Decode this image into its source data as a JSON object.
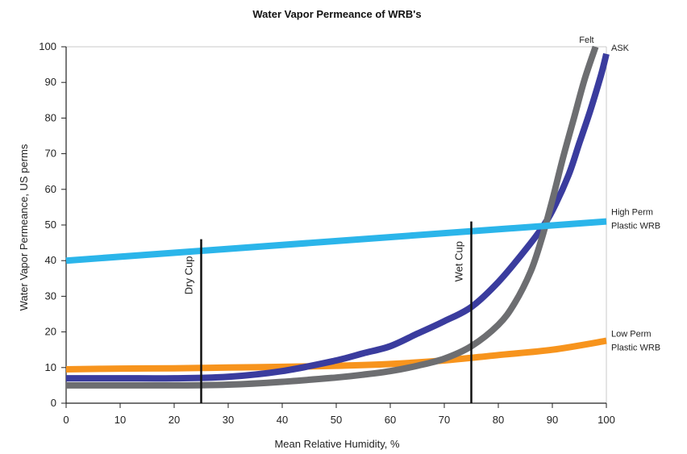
{
  "chart_data": {
    "type": "line",
    "title": "Water Vapor Permeance of WRB's",
    "xlabel": "Mean Relative Humidity, %",
    "ylabel": "Water Vapor Permeance, US perms",
    "xlim": [
      0,
      100
    ],
    "ylim": [
      0,
      100
    ],
    "xticks": [
      0,
      10,
      20,
      30,
      40,
      50,
      60,
      70,
      80,
      90,
      100
    ],
    "yticks": [
      0,
      10,
      20,
      30,
      40,
      50,
      60,
      70,
      80,
      90,
      100
    ],
    "grid": false,
    "legend": "direct labels at right end of lines",
    "series": [
      {
        "name": "Felt",
        "color": "#6d6e71",
        "x": [
          0,
          10,
          20,
          30,
          40,
          50,
          55,
          60,
          65,
          70,
          75,
          80,
          83,
          86,
          88,
          90,
          92,
          94,
          96,
          98
        ],
        "y": [
          5,
          5,
          5,
          5.2,
          6,
          7.2,
          8,
          9,
          10.5,
          12.5,
          16,
          22,
          28,
          37,
          46,
          57,
          69,
          80,
          91,
          100
        ]
      },
      {
        "name": "ASK",
        "color": "#3a3c9e",
        "x": [
          0,
          10,
          20,
          30,
          40,
          50,
          55,
          60,
          65,
          70,
          75,
          80,
          85,
          88,
          90,
          93,
          95,
          97,
          99,
          100
        ],
        "y": [
          7,
          7,
          7,
          7.4,
          9,
          12,
          14,
          16,
          19.5,
          23,
          27,
          34,
          43,
          49,
          54,
          64,
          73,
          82,
          92,
          98
        ]
      },
      {
        "name": "High Perm Plastic WRB",
        "label_lines": [
          "High Perm",
          "Plastic WRB"
        ],
        "color": "#2bb5ea",
        "x": [
          0,
          100
        ],
        "y": [
          40,
          51
        ]
      },
      {
        "name": "Low Perm Plastic WRB",
        "label_lines": [
          "Low Perm",
          "Plastic WRB"
        ],
        "color": "#f7941d",
        "x": [
          0,
          10,
          20,
          30,
          40,
          50,
          60,
          70,
          80,
          90,
          100
        ],
        "y": [
          9.5,
          9.7,
          9.8,
          10,
          10.2,
          10.5,
          11,
          12,
          13.5,
          15,
          17.5
        ]
      }
    ],
    "annotations": [
      {
        "label": "Dry Cup",
        "x": 25,
        "y_from": 0,
        "y_to": 46
      },
      {
        "label": "Wet Cup",
        "x": 75,
        "y_from": 0,
        "y_to": 51
      }
    ]
  }
}
